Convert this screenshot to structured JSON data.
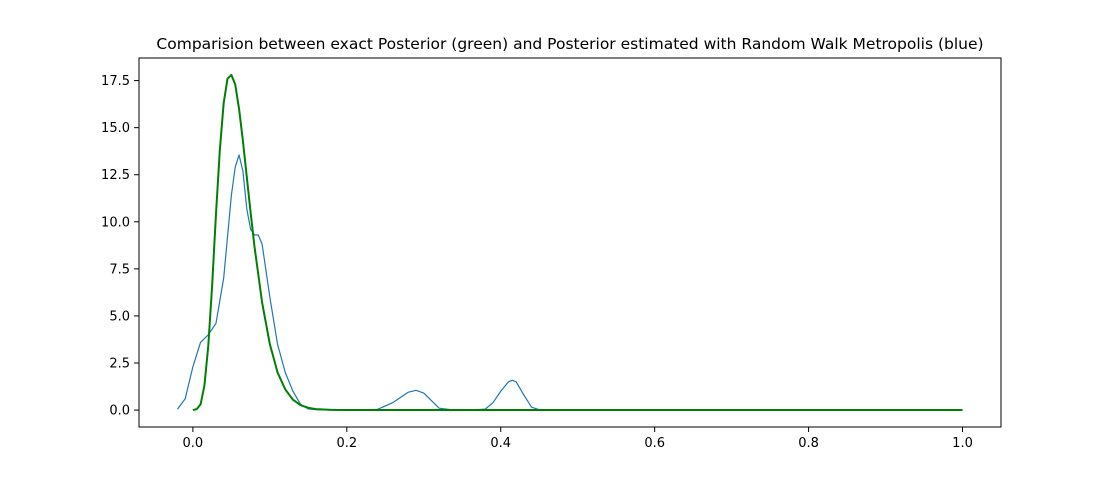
{
  "chart_data": {
    "type": "line",
    "title": "Comparision between exact Posterior (green) and Posterior estimated with Random Walk Metropolis (blue)",
    "xlabel": "",
    "ylabel": "",
    "xlim": [
      -0.07,
      1.05
    ],
    "ylim": [
      -0.9,
      18.7
    ],
    "x_ticks": [
      0.0,
      0.2,
      0.4,
      0.6,
      0.8,
      1.0
    ],
    "x_tick_labels": [
      "0.0",
      "0.2",
      "0.4",
      "0.6",
      "0.8",
      "1.0"
    ],
    "y_ticks": [
      0.0,
      2.5,
      5.0,
      7.5,
      10.0,
      12.5,
      15.0,
      17.5
    ],
    "y_tick_labels": [
      "0.0",
      "2.5",
      "5.0",
      "7.5",
      "10.0",
      "12.5",
      "15.0",
      "17.5"
    ],
    "grid": false,
    "legend": "none",
    "series": [
      {
        "color": "#1f77b4",
        "line_width": 1.2,
        "x": [
          -0.02,
          -0.01,
          0.0,
          0.01,
          0.02,
          0.03,
          0.04,
          0.05,
          0.055,
          0.06,
          0.065,
          0.07,
          0.075,
          0.08,
          0.085,
          0.09,
          0.1,
          0.11,
          0.12,
          0.13,
          0.14,
          0.15,
          0.16,
          0.18,
          0.2,
          0.22,
          0.24,
          0.26,
          0.28,
          0.29,
          0.3,
          0.32,
          0.34,
          0.36,
          0.38,
          0.39,
          0.4,
          0.41,
          0.415,
          0.42,
          0.43,
          0.44,
          0.45,
          0.46,
          0.48,
          0.5
        ],
        "y": [
          0.05,
          0.6,
          2.3,
          3.6,
          4.0,
          4.6,
          7.0,
          11.4,
          12.9,
          13.55,
          12.7,
          10.7,
          9.6,
          9.3,
          9.3,
          8.8,
          6.0,
          3.5,
          2.0,
          1.0,
          0.3,
          0.06,
          0.02,
          0.0,
          0.0,
          0.0,
          0.04,
          0.4,
          0.95,
          1.05,
          0.9,
          0.1,
          0.0,
          0.0,
          0.05,
          0.4,
          1.0,
          1.5,
          1.58,
          1.5,
          0.8,
          0.15,
          0.02,
          0.0,
          0.0,
          0.0
        ]
      },
      {
        "color": "#008000",
        "line_width": 2.0,
        "x": [
          0.0,
          0.005,
          0.01,
          0.015,
          0.02,
          0.025,
          0.03,
          0.035,
          0.04,
          0.045,
          0.05,
          0.055,
          0.06,
          0.065,
          0.07,
          0.075,
          0.08,
          0.09,
          0.1,
          0.11,
          0.12,
          0.13,
          0.14,
          0.15,
          0.16,
          0.18,
          0.2,
          0.25,
          0.3,
          0.4,
          0.5,
          0.6,
          0.7,
          0.8,
          0.9,
          1.0
        ],
        "y": [
          0.0,
          0.05,
          0.3,
          1.3,
          3.4,
          6.6,
          10.4,
          13.8,
          16.3,
          17.6,
          17.8,
          17.3,
          16.0,
          14.3,
          12.4,
          10.5,
          8.7,
          5.7,
          3.5,
          2.0,
          1.1,
          0.55,
          0.26,
          0.12,
          0.05,
          0.01,
          0.0,
          0.0,
          0.0,
          0.0,
          0.0,
          0.0,
          0.0,
          0.0,
          0.0,
          0.0
        ]
      }
    ]
  }
}
